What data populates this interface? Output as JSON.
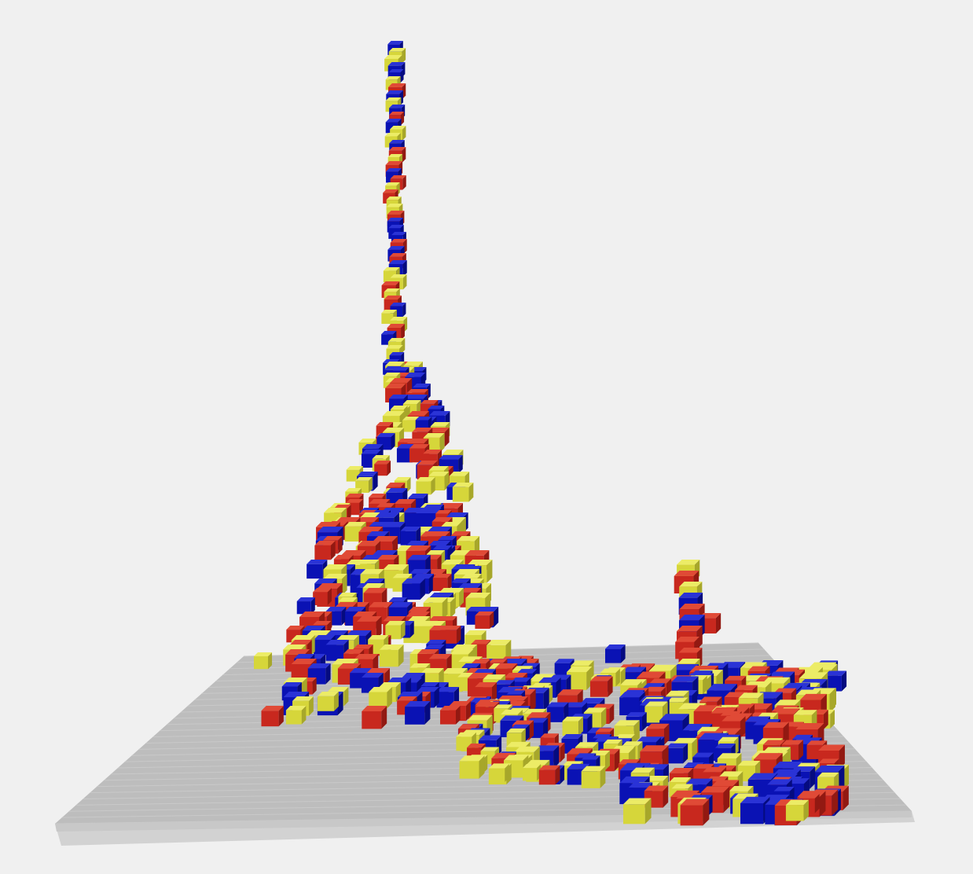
{
  "scene": {
    "background": "#f0f0f0",
    "floor_color": "#bdbdbd",
    "floor_edge_color": "#d2d2d2",
    "block_colors": {
      "red": [
        "#c8281e",
        "#e04a36",
        "#921912"
      ],
      "blue": [
        "#0a12b4",
        "#2a33d6",
        "#050b80"
      ],
      "yellow": [
        "#d6d63a",
        "#ecec66",
        "#a7a72a"
      ]
    },
    "color_cycle": [
      "red",
      "blue",
      "yellow"
    ]
  }
}
